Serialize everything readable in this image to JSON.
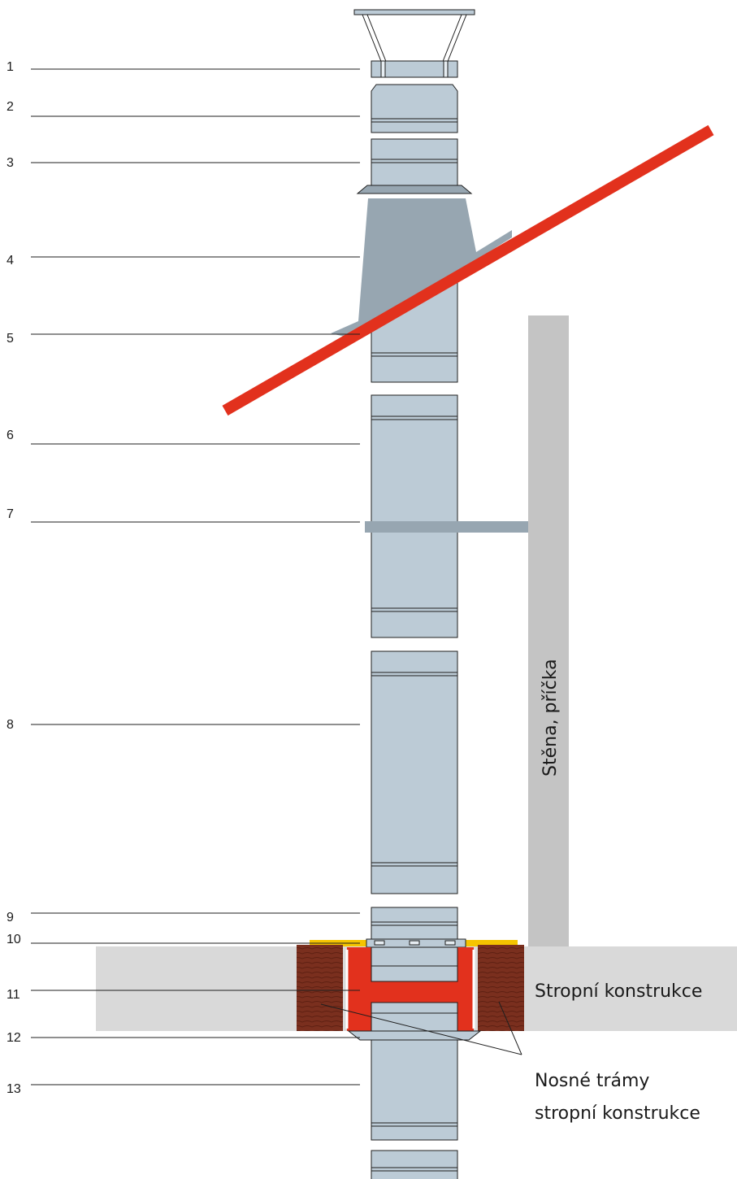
{
  "numbers": [
    "1",
    "2",
    "3",
    "4",
    "5",
    "6",
    "7",
    "8",
    "9",
    "10",
    "11",
    "12",
    "13"
  ],
  "labels": {
    "wall": "Stěna, příčka",
    "ceiling": "Stropní konstrukce",
    "beams_line1": "Nosné trámy",
    "beams_line2": "stropní konstrukce"
  },
  "colors": {
    "pipe": "#bccbd6",
    "flashing": "#97a6b1",
    "roof": "#e2311d",
    "wall": "#c4c4c4",
    "ceiling": "#d9d9d9",
    "beam": "#7a2f1e",
    "fire_insulation": "#e2311d",
    "yellow_seal": "#f5c400"
  }
}
